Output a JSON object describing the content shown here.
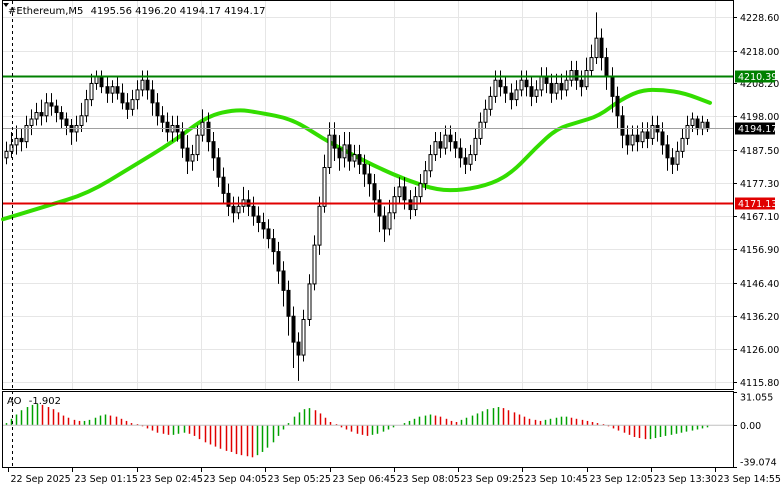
{
  "chart_data": [
    {
      "type": "candlestick",
      "title": "#Ethereum,M5",
      "ohlc_readout": "4195.56 4196.20 4194.17 4194.17",
      "ylim": [
        4113.5,
        4233.5
      ],
      "y_ticks": [
        "4228.60",
        "4218.00",
        "4208.20",
        "4198.00",
        "4187.50",
        "4177.30",
        "4167.10",
        "4156.90",
        "4146.40",
        "4136.20",
        "4126.00",
        "4115.80"
      ],
      "x_labels": [
        "22 Sep 2025",
        "23 Sep 01:15",
        "23 Sep 02:45",
        "23 Sep 04:05",
        "23 Sep 05:25",
        "23 Sep 06:45",
        "23 Sep 08:05",
        "23 Sep 09:25",
        "23 Sep 10:45",
        "23 Sep 12:05",
        "23 Sep 13:30",
        "23 Sep 14:55"
      ],
      "horizontal_lines": [
        {
          "label": "4210.39",
          "value": 4210.39,
          "color": "#008000"
        },
        {
          "label": "4171.13",
          "value": 4171.13,
          "color": "#e00000"
        }
      ],
      "current_price": {
        "label": "4194.17",
        "value": 4194.17
      },
      "moving_average": {
        "color": "#33dd00",
        "points": [
          [
            0,
            4166
          ],
          [
            10,
            4170
          ],
          [
            20,
            4174
          ],
          [
            30,
            4182
          ],
          [
            40,
            4190
          ],
          [
            48,
            4198
          ],
          [
            55,
            4200
          ],
          [
            60,
            4199
          ],
          [
            68,
            4197
          ],
          [
            75,
            4191
          ],
          [
            82,
            4186
          ],
          [
            88,
            4182
          ],
          [
            95,
            4178
          ],
          [
            102,
            4175
          ],
          [
            108,
            4175
          ],
          [
            115,
            4177
          ],
          [
            120,
            4181
          ],
          [
            125,
            4188
          ],
          [
            130,
            4194
          ],
          [
            135,
            4196
          ],
          [
            140,
            4198
          ],
          [
            145,
            4203
          ],
          [
            150,
            4206
          ],
          [
            155,
            4206
          ],
          [
            160,
            4205
          ],
          [
            166,
            4202
          ]
        ]
      },
      "candles": [
        [
          4185,
          4187,
          4183,
          4190
        ],
        [
          4187,
          4189,
          4185,
          4193
        ],
        [
          4189,
          4191,
          4186,
          4195
        ],
        [
          4191,
          4190,
          4187,
          4194
        ],
        [
          4190,
          4195,
          4188,
          4198
        ],
        [
          4195,
          4197,
          4192,
          4200
        ],
        [
          4197,
          4199,
          4195,
          4202
        ],
        [
          4199,
          4198,
          4195,
          4203
        ],
        [
          4198,
          4202,
          4196,
          4205
        ],
        [
          4202,
          4201,
          4198,
          4205
        ],
        [
          4201,
          4199,
          4196,
          4203
        ],
        [
          4199,
          4197,
          4194,
          4201
        ],
        [
          4197,
          4195,
          4192,
          4199
        ],
        [
          4195,
          4193,
          4189,
          4197
        ],
        [
          4193,
          4195,
          4190,
          4198
        ],
        [
          4195,
          4198,
          4193,
          4202
        ],
        [
          4198,
          4203,
          4196,
          4206
        ],
        [
          4203,
          4208,
          4201,
          4211
        ],
        [
          4208,
          4210,
          4206,
          4212
        ],
        [
          4210,
          4207,
          4205,
          4212
        ],
        [
          4207,
          4205,
          4202,
          4210
        ],
        [
          4205,
          4207,
          4202,
          4209
        ],
        [
          4207,
          4205,
          4203,
          4210
        ],
        [
          4205,
          4202,
          4200,
          4208
        ],
        [
          4202,
          4200,
          4197,
          4205
        ],
        [
          4200,
          4203,
          4198,
          4206
        ],
        [
          4203,
          4206,
          4200,
          4209
        ],
        [
          4206,
          4209,
          4204,
          4212
        ],
        [
          4209,
          4206,
          4203,
          4212
        ],
        [
          4206,
          4202,
          4198,
          4209
        ],
        [
          4202,
          4198,
          4195,
          4205
        ],
        [
          4198,
          4196,
          4193,
          4201
        ],
        [
          4196,
          4193,
          4190,
          4199
        ],
        [
          4193,
          4195,
          4190,
          4198
        ],
        [
          4195,
          4193,
          4190,
          4198
        ],
        [
          4193,
          4188,
          4185,
          4196
        ],
        [
          4188,
          4184,
          4180,
          4192
        ],
        [
          4184,
          4186,
          4181,
          4189
        ],
        [
          4186,
          4192,
          4184,
          4195
        ],
        [
          4192,
          4196,
          4190,
          4200
        ],
        [
          4196,
          4190,
          4187,
          4199
        ],
        [
          4190,
          4185,
          4181,
          4193
        ],
        [
          4185,
          4179,
          4176,
          4188
        ],
        [
          4179,
          4174,
          4171,
          4182
        ],
        [
          4174,
          4170,
          4167,
          4177
        ],
        [
          4170,
          4168,
          4165,
          4173
        ],
        [
          4168,
          4170,
          4166,
          4173
        ],
        [
          4170,
          4172,
          4168,
          4176
        ],
        [
          4172,
          4170,
          4167,
          4175
        ],
        [
          4170,
          4167,
          4164,
          4173
        ],
        [
          4167,
          4165,
          4162,
          4170
        ],
        [
          4165,
          4163,
          4160,
          4168
        ],
        [
          4163,
          4160,
          4157,
          4166
        ],
        [
          4160,
          4156,
          4152,
          4163
        ],
        [
          4156,
          4150,
          4146,
          4159
        ],
        [
          4150,
          4144,
          4139,
          4153
        ],
        [
          4144,
          4136,
          4130,
          4147
        ],
        [
          4136,
          4128,
          4120,
          4139
        ],
        [
          4128,
          4124,
          4116,
          4131
        ],
        [
          4124,
          4135,
          4122,
          4138
        ],
        [
          4135,
          4146,
          4133,
          4149
        ],
        [
          4146,
          4158,
          4144,
          4161
        ],
        [
          4158,
          4170,
          4155,
          4173
        ],
        [
          4170,
          4182,
          4168,
          4186
        ],
        [
          4182,
          4192,
          4180,
          4196
        ],
        [
          4192,
          4188,
          4184,
          4196
        ],
        [
          4188,
          4185,
          4181,
          4192
        ],
        [
          4185,
          4189,
          4182,
          4193
        ],
        [
          4189,
          4184,
          4181,
          4193
        ],
        [
          4184,
          4186,
          4182,
          4189
        ],
        [
          4186,
          4183,
          4180,
          4189
        ],
        [
          4183,
          4180,
          4176,
          4186
        ],
        [
          4180,
          4177,
          4173,
          4183
        ],
        [
          4177,
          4172,
          4168,
          4180
        ],
        [
          4172,
          4167,
          4162,
          4175
        ],
        [
          4167,
          4163,
          4159,
          4170
        ],
        [
          4163,
          4168,
          4161,
          4172
        ],
        [
          4168,
          4173,
          4166,
          4176
        ],
        [
          4173,
          4176,
          4171,
          4179
        ],
        [
          4176,
          4172,
          4169,
          4179
        ],
        [
          4172,
          4169,
          4166,
          4175
        ],
        [
          4169,
          4173,
          4167,
          4176
        ],
        [
          4173,
          4177,
          4171,
          4180
        ],
        [
          4177,
          4181,
          4175,
          4184
        ],
        [
          4181,
          4186,
          4179,
          4189
        ],
        [
          4186,
          4190,
          4184,
          4193
        ],
        [
          4190,
          4188,
          4185,
          4193
        ],
        [
          4188,
          4192,
          4186,
          4195
        ],
        [
          4192,
          4190,
          4187,
          4195
        ],
        [
          4190,
          4188,
          4185,
          4193
        ],
        [
          4188,
          4185,
          4182,
          4191
        ],
        [
          4185,
          4183,
          4180,
          4188
        ],
        [
          4183,
          4186,
          4181,
          4189
        ],
        [
          4186,
          4191,
          4184,
          4194
        ],
        [
          4191,
          4196,
          4189,
          4199
        ],
        [
          4196,
          4200,
          4194,
          4203
        ],
        [
          4200,
          4204,
          4198,
          4207
        ],
        [
          4204,
          4209,
          4202,
          4212
        ],
        [
          4209,
          4207,
          4204,
          4212
        ],
        [
          4207,
          4205,
          4202,
          4210
        ],
        [
          4205,
          4203,
          4200,
          4208
        ],
        [
          4203,
          4206,
          4201,
          4209
        ],
        [
          4206,
          4209,
          4204,
          4212
        ],
        [
          4209,
          4207,
          4204,
          4212
        ],
        [
          4207,
          4204,
          4201,
          4210
        ],
        [
          4204,
          4206,
          4202,
          4209
        ],
        [
          4206,
          4210,
          4204,
          4213
        ],
        [
          4210,
          4208,
          4205,
          4213
        ],
        [
          4208,
          4205,
          4202,
          4211
        ],
        [
          4205,
          4208,
          4203,
          4211
        ],
        [
          4208,
          4206,
          4203,
          4211
        ],
        [
          4206,
          4209,
          4204,
          4212
        ],
        [
          4209,
          4212,
          4207,
          4215
        ],
        [
          4212,
          4209,
          4206,
          4215
        ],
        [
          4209,
          4207,
          4204,
          4212
        ],
        [
          4207,
          4212,
          4206,
          4216
        ],
        [
          4212,
          4216,
          4210,
          4220
        ],
        [
          4216,
          4222,
          4214,
          4230
        ],
        [
          4222,
          4216,
          4212,
          4225
        ],
        [
          4216,
          4210,
          4206,
          4219
        ],
        [
          4210,
          4204,
          4199,
          4213
        ],
        [
          4204,
          4198,
          4194,
          4207
        ],
        [
          4198,
          4192,
          4188,
          4201
        ],
        [
          4192,
          4189,
          4186,
          4195
        ],
        [
          4189,
          4192,
          4187,
          4195
        ],
        [
          4192,
          4190,
          4187,
          4195
        ],
        [
          4190,
          4193,
          4188,
          4196
        ],
        [
          4193,
          4191,
          4188,
          4196
        ],
        [
          4191,
          4195,
          4189,
          4198
        ],
        [
          4195,
          4193,
          4190,
          4198
        ],
        [
          4193,
          4189,
          4186,
          4196
        ],
        [
          4189,
          4185,
          4181,
          4192
        ],
        [
          4185,
          4183,
          4180,
          4188
        ],
        [
          4183,
          4187,
          4181,
          4190
        ],
        [
          4187,
          4191,
          4185,
          4194
        ],
        [
          4191,
          4195,
          4189,
          4198
        ],
        [
          4195,
          4197,
          4193,
          4199
        ],
        [
          4197,
          4194,
          4192,
          4198
        ],
        [
          4194,
          4196,
          4192,
          4198
        ],
        [
          4196,
          4194,
          4193,
          4197
        ]
      ]
    },
    {
      "type": "bar",
      "title": "AO",
      "value_readout": "-1.902",
      "ylim": [
        -39.074,
        31.055
      ],
      "y_ticks": [
        "31.055",
        "0.00",
        "-39.074"
      ],
      "bar_colors": {
        "up": "#00a000",
        "down": "#e00000"
      },
      "values": [
        2,
        6,
        10,
        14,
        17,
        19,
        20,
        19,
        17,
        15,
        12,
        9,
        7,
        5,
        4,
        4,
        5,
        7,
        9,
        10,
        9,
        8,
        6,
        4,
        2,
        1,
        -1,
        -3,
        -5,
        -7,
        -8,
        -9,
        -9,
        -8,
        -7,
        -8,
        -10,
        -13,
        -16,
        -18,
        -20,
        -22,
        -24,
        -25,
        -27,
        -28,
        -29,
        -30,
        -28,
        -25,
        -21,
        -16,
        -10,
        -4,
        2,
        8,
        12,
        15,
        16,
        14,
        11,
        7,
        3,
        1,
        -2,
        -4,
        -6,
        -8,
        -9,
        -10,
        -9,
        -8,
        -6,
        -4,
        -2,
        0,
        2,
        4,
        6,
        8,
        9,
        10,
        9,
        8,
        6,
        4,
        3,
        5,
        7,
        9,
        11,
        13,
        15,
        16,
        17,
        16,
        14,
        12,
        10,
        8,
        6,
        5,
        4,
        5,
        6,
        7,
        8,
        8,
        7,
        6,
        5,
        4,
        3,
        2,
        1,
        -1,
        -3,
        -5,
        -7,
        -9,
        -11,
        -12,
        -13,
        -13,
        -12,
        -11,
        -10,
        -9,
        -8,
        -7,
        -6,
        -5,
        -4,
        -3,
        -2
      ]
    }
  ]
}
